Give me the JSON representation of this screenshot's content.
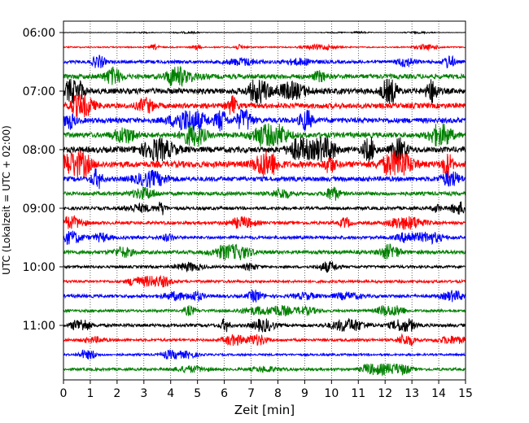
{
  "chart_data": {
    "type": "line",
    "title": "",
    "xlabel": "Zeit  [min]",
    "ylabel": "UTC (Lokalzeit = UTC + 02:00)",
    "x_ticks": [
      0,
      1,
      2,
      3,
      4,
      5,
      6,
      7,
      8,
      9,
      10,
      11,
      12,
      13,
      14,
      15
    ],
    "xlim": [
      0,
      15
    ],
    "y_tick_labels": [
      "06:00",
      "07:00",
      "08:00",
      "09:00",
      "10:00",
      "11:00"
    ],
    "y_tick_rows": [
      0,
      4,
      8,
      12,
      16,
      20
    ],
    "rows": 24,
    "grid": "vertical dotted",
    "trace_colors": [
      "#000000",
      "#ff0000",
      "#0000ff",
      "#008000"
    ],
    "row_amplitude": [
      0.04,
      0.12,
      0.3,
      0.45,
      0.55,
      0.5,
      0.5,
      0.5,
      0.55,
      0.6,
      0.45,
      0.35,
      0.3,
      0.3,
      0.3,
      0.35,
      0.25,
      0.25,
      0.3,
      0.25,
      0.3,
      0.25,
      0.2,
      0.25
    ]
  }
}
